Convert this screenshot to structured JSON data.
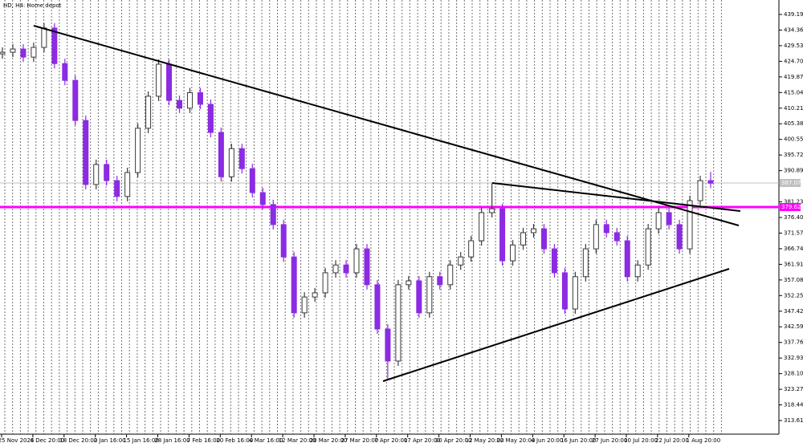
{
  "chart_data": {
    "type": "candlestick",
    "title": "HD, H4: Home depot",
    "x_labels": [
      "25 Nov 2024",
      "6 Dec 20:00",
      "18 Dec 20:00",
      "2 Jan 16:00",
      "15 Jan 16:00",
      "28 Jan 16:00",
      "7 Feb 16:00",
      "20 Feb 16:00",
      "4 Mar 16:00",
      "12 Mar 20:00",
      "20 Mar 20:00",
      "27 Mar 20:00",
      "7 Apr 20:00",
      "17 Apr 20:00",
      "30 Apr 20:00",
      "12 May 20:00",
      "22 May 20:00",
      "4 Jun 20:00",
      "16 Jun 20:00",
      "27 Jun 20:00",
      "10 Jul 20:00",
      "22 Jul 20:00",
      "1 Aug 20:00"
    ],
    "open": [
      427.0,
      427.5,
      428.5,
      426.0,
      429.0,
      435.0,
      424.0,
      418.8,
      406.4,
      386.6,
      392.8,
      387.8,
      382.9,
      390.3,
      404.0,
      413.9,
      423.8,
      412.6,
      410.2,
      415.0,
      411.4,
      402.7,
      389.0,
      397.7,
      391.5,
      384.1,
      380.4,
      374.2,
      364.2,
      346.9,
      351.8,
      353.1,
      359.3,
      361.7,
      359.3,
      366.7,
      355.6,
      341.9,
      332.0,
      355.6,
      356.8,
      346.9,
      358.1,
      355.6,
      361.7,
      364.2,
      369.2,
      377.9,
      379.1,
      363.0,
      367.9,
      371.7,
      372.9,
      366.7,
      359.3,
      348.1,
      358.1,
      366.7,
      374.2,
      371.7,
      369.2,
      358.1,
      361.7,
      372.9,
      377.9,
      374.2,
      366.7,
      381.6,
      387.8
    ],
    "high": [
      429.0,
      430.0,
      430.0,
      430.5,
      436.5,
      436.5,
      425.5,
      420.3,
      407.9,
      394.3,
      394.3,
      389.3,
      391.8,
      405.5,
      415.4,
      425.3,
      425.3,
      414.1,
      416.5,
      416.5,
      412.9,
      404.2,
      399.2,
      399.2,
      393.0,
      385.6,
      381.9,
      375.7,
      365.7,
      353.3,
      354.6,
      360.8,
      363.2,
      363.2,
      368.2,
      368.2,
      357.1,
      343.4,
      357.1,
      358.3,
      358.3,
      359.6,
      359.6,
      363.2,
      365.7,
      370.7,
      379.4,
      387.0,
      380.6,
      369.4,
      373.2,
      374.4,
      374.4,
      368.2,
      360.8,
      359.6,
      368.2,
      375.7,
      375.7,
      373.2,
      370.7,
      363.2,
      374.4,
      379.4,
      379.4,
      375.7,
      383.1,
      389.3,
      390.5
    ],
    "low": [
      425.5,
      426.0,
      424.5,
      424.5,
      427.5,
      422.5,
      417.3,
      404.9,
      385.1,
      385.1,
      386.3,
      381.4,
      381.4,
      388.8,
      402.5,
      412.4,
      411.1,
      408.7,
      408.7,
      409.9,
      401.2,
      387.5,
      387.5,
      390.0,
      382.6,
      378.9,
      372.7,
      362.7,
      345.4,
      345.4,
      350.3,
      351.6,
      357.8,
      357.8,
      357.8,
      354.1,
      340.4,
      326.5,
      330.5,
      354.1,
      345.4,
      345.4,
      354.1,
      354.1,
      360.2,
      362.7,
      367.7,
      376.4,
      361.5,
      361.5,
      366.4,
      370.2,
      365.2,
      357.8,
      346.6,
      346.6,
      356.6,
      365.2,
      370.2,
      367.7,
      356.6,
      356.6,
      360.2,
      371.4,
      372.7,
      365.2,
      365.2,
      380.1,
      385.5
    ],
    "close": [
      427.5,
      428.5,
      426.0,
      429.0,
      435.0,
      424.0,
      418.8,
      406.4,
      386.6,
      392.8,
      387.8,
      382.9,
      390.3,
      404.0,
      413.9,
      423.8,
      412.6,
      410.2,
      415.0,
      411.4,
      402.7,
      389.0,
      397.7,
      391.5,
      384.1,
      380.4,
      374.2,
      364.2,
      346.9,
      351.8,
      353.1,
      359.3,
      361.7,
      359.3,
      366.7,
      355.6,
      341.9,
      332.0,
      355.6,
      356.8,
      346.9,
      358.1,
      355.6,
      361.7,
      364.2,
      369.2,
      377.9,
      379.1,
      363.0,
      367.9,
      371.7,
      372.9,
      366.7,
      359.3,
      348.1,
      358.1,
      366.7,
      374.2,
      371.7,
      369.2,
      358.1,
      361.7,
      372.9,
      377.9,
      374.2,
      366.7,
      381.6,
      387.8,
      387.0
    ],
    "bull_color": "#3a3a3a",
    "bear_color": "#8b2be2",
    "ylim": [
      309.64,
      443.66
    ],
    "yticks": [
      439.19,
      434.36,
      429.53,
      {
        "value": 424.7,
        "label": "424.70"
      },
      419.87,
      415.04,
      410.21,
      405.38,
      400.55,
      395.72,
      390.89,
      381.23,
      {
        "value": 376.4,
        "label": "376.40"
      },
      371.57,
      366.74,
      361.91,
      357.08,
      352.25,
      347.42,
      342.59,
      337.76,
      332.93,
      {
        "value": 328.1,
        "label": "328.10"
      },
      323.27,
      318.44,
      313.61
    ],
    "levels": [
      {
        "value": 387.07,
        "color": "#c0c0c0"
      },
      {
        "value": 379.62,
        "color": "#ff00ff"
      }
    ]
  }
}
